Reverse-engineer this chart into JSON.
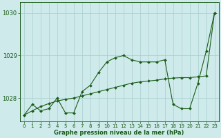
{
  "xlabel": "Graphe pression niveau de la mer (hPa)",
  "background_color": "#ceeaea",
  "line_color": "#1a5c1a",
  "grid_color": "#a8cece",
  "x": [
    0,
    1,
    2,
    3,
    4,
    5,
    6,
    7,
    8,
    9,
    10,
    11,
    12,
    13,
    14,
    15,
    16,
    17,
    18,
    19,
    20,
    21,
    22,
    23
  ],
  "y_zigzag": [
    1027.6,
    1027.85,
    1027.7,
    1027.75,
    1028.0,
    1027.65,
    1027.65,
    1028.15,
    1028.3,
    1028.6,
    1028.85,
    1028.95,
    1029.0,
    1028.9,
    1028.85,
    1028.85,
    1028.85,
    1028.9,
    1027.85,
    1027.75,
    1027.75,
    1028.35,
    1029.1,
    1030.0
  ],
  "y_trend": [
    1027.6,
    1027.7,
    1027.8,
    1027.87,
    1027.93,
    1027.97,
    1028.0,
    1028.05,
    1028.1,
    1028.15,
    1028.2,
    1028.25,
    1028.3,
    1028.35,
    1028.38,
    1028.4,
    1028.42,
    1028.45,
    1028.47,
    1028.48,
    1028.48,
    1028.5,
    1028.52,
    1030.0
  ],
  "ylim": [
    1027.45,
    1030.25
  ],
  "yticks": [
    1028,
    1029,
    1030
  ],
  "xlim": [
    -0.5,
    23.5
  ],
  "xticks": [
    0,
    1,
    2,
    3,
    4,
    5,
    6,
    7,
    8,
    9,
    10,
    11,
    12,
    13,
    14,
    15,
    16,
    17,
    18,
    19,
    20,
    21,
    22,
    23
  ],
  "marker": "D",
  "markersize": 2.0,
  "linewidth": 0.8,
  "xlabel_fontsize": 6.0,
  "tick_fontsize": 5.0,
  "ytick_fontsize": 6.0
}
